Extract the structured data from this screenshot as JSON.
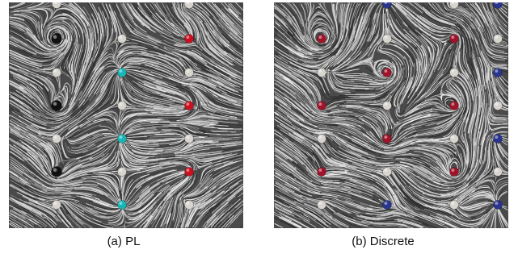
{
  "figure": {
    "panels": [
      {
        "caption": "(a) PL",
        "critical_points": [
          {
            "kind": "vortex-center",
            "color": "#111111"
          },
          {
            "kind": "vortex-center",
            "color": "#111111"
          },
          {
            "kind": "vortex-center",
            "color": "#111111"
          },
          {
            "kind": "saddle",
            "color": "#d8d5cf"
          },
          {
            "kind": "saddle",
            "color": "#d8d5cf"
          },
          {
            "kind": "saddle",
            "color": "#d8d5cf"
          },
          {
            "kind": "saddle",
            "color": "#d8d5cf"
          },
          {
            "kind": "saddle",
            "color": "#d8d5cf"
          },
          {
            "kind": "saddle",
            "color": "#d8d5cf"
          },
          {
            "kind": "saddle",
            "color": "#d8d5cf"
          },
          {
            "kind": "saddle",
            "color": "#d8d5cf"
          },
          {
            "kind": "saddle",
            "color": "#d8d5cf"
          },
          {
            "kind": "saddle",
            "color": "#d8d5cf"
          },
          {
            "kind": "saddle",
            "color": "#d8d5cf"
          },
          {
            "kind": "source",
            "color": "#19b6b6"
          },
          {
            "kind": "source",
            "color": "#19b6b6"
          },
          {
            "kind": "source",
            "color": "#19b6b6"
          },
          {
            "kind": "sink",
            "color": "#cc1020"
          },
          {
            "kind": "sink",
            "color": "#cc1020"
          },
          {
            "kind": "sink",
            "color": "#cc1020"
          }
        ]
      },
      {
        "caption": "(b) Discrete",
        "critical_points": [
          {
            "kind": "maximum",
            "color": "#a0142a"
          },
          {
            "kind": "maximum",
            "color": "#a0142a"
          },
          {
            "kind": "maximum",
            "color": "#a0142a"
          },
          {
            "kind": "maximum",
            "color": "#a0142a"
          },
          {
            "kind": "maximum",
            "color": "#a0142a"
          },
          {
            "kind": "maximum",
            "color": "#a0142a"
          },
          {
            "kind": "maximum",
            "color": "#a0142a"
          },
          {
            "kind": "maximum",
            "color": "#a0142a"
          },
          {
            "kind": "saddle",
            "color": "#d8d5cf"
          },
          {
            "kind": "saddle",
            "color": "#d8d5cf"
          },
          {
            "kind": "saddle",
            "color": "#d8d5cf"
          },
          {
            "kind": "saddle",
            "color": "#d8d5cf"
          },
          {
            "kind": "saddle",
            "color": "#d8d5cf"
          },
          {
            "kind": "saddle",
            "color": "#d8d5cf"
          },
          {
            "kind": "saddle",
            "color": "#d8d5cf"
          },
          {
            "kind": "saddle",
            "color": "#d8d5cf"
          },
          {
            "kind": "saddle",
            "color": "#d8d5cf"
          },
          {
            "kind": "saddle",
            "color": "#d8d5cf"
          },
          {
            "kind": "saddle",
            "color": "#d8d5cf"
          },
          {
            "kind": "saddle",
            "color": "#d8d5cf"
          },
          {
            "kind": "saddle",
            "color": "#d8d5cf"
          },
          {
            "kind": "minimum",
            "color": "#2a3590"
          },
          {
            "kind": "minimum",
            "color": "#2a3590"
          },
          {
            "kind": "minimum",
            "color": "#2a3590"
          },
          {
            "kind": "minimum",
            "color": "#2a3590"
          },
          {
            "kind": "minimum",
            "color": "#2a3590"
          },
          {
            "kind": "minimum",
            "color": "#2a3590"
          }
        ]
      }
    ]
  }
}
